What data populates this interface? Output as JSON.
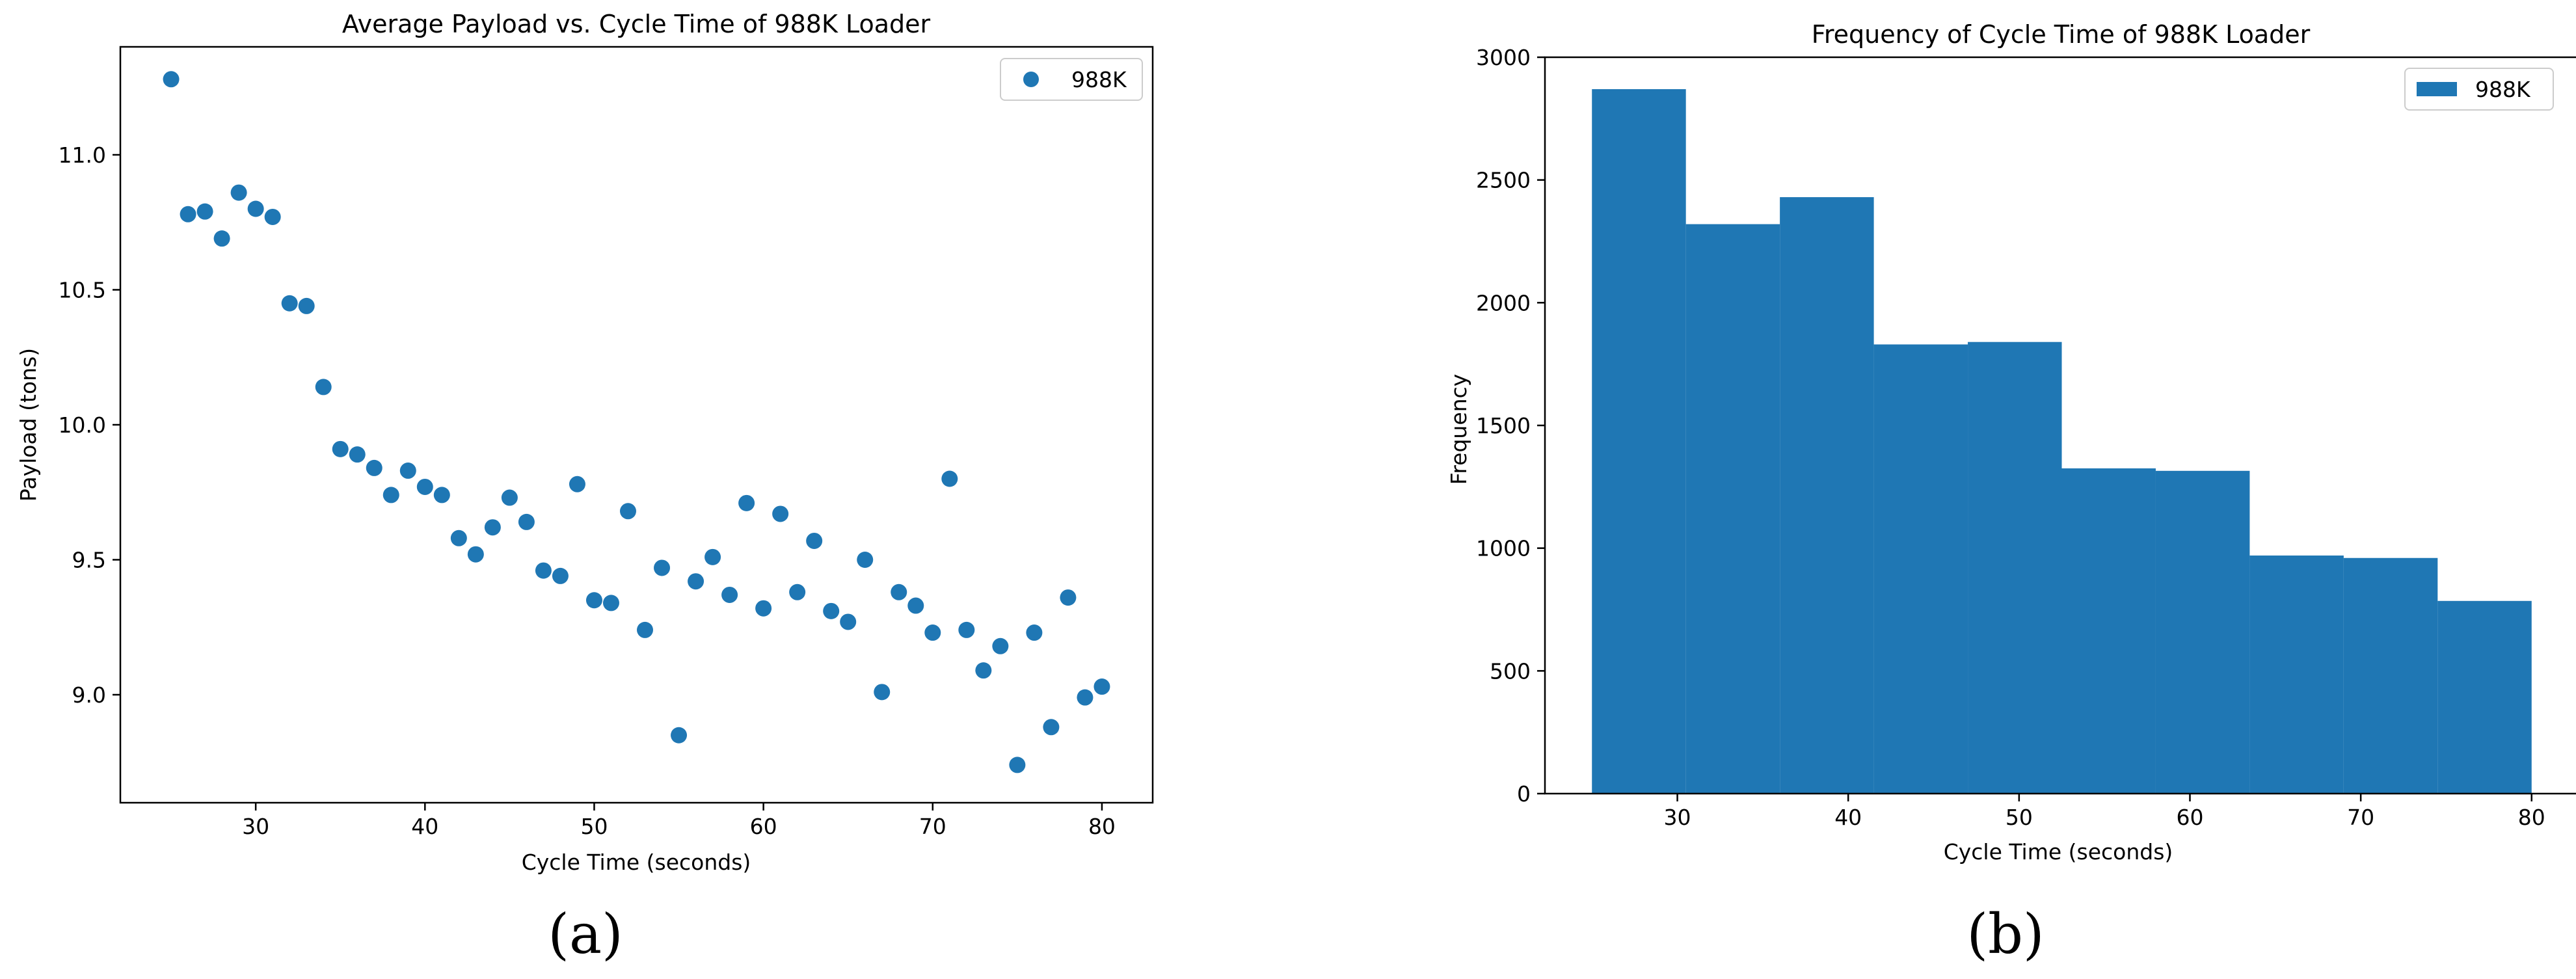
{
  "chart_data": [
    {
      "type": "scatter",
      "title": "Average Payload vs. Cycle Time of 988K Loader",
      "xlabel": "Cycle Time (seconds)",
      "ylabel": "Payload (tons)",
      "xlim": [
        22,
        83
      ],
      "ylim": [
        8.6,
        11.4
      ],
      "xticks": [
        30,
        40,
        50,
        60,
        70,
        80
      ],
      "yticks": [
        9.0,
        9.5,
        10.0,
        10.5,
        11.0
      ],
      "ytick_labels": [
        "9.0",
        "9.5",
        "10.0",
        "10.5",
        "11.0"
      ],
      "grid": false,
      "legend_position": "top-right",
      "color": "#1f77b4",
      "caption": "(a)",
      "series": [
        {
          "name": "988K",
          "x": [
            25,
            26,
            27,
            28,
            29,
            30,
            31,
            32,
            33,
            34,
            35,
            36,
            37,
            38,
            39,
            40,
            41,
            42,
            43,
            44,
            45,
            46,
            47,
            48,
            49,
            50,
            51,
            52,
            53,
            54,
            55,
            56,
            57,
            58,
            59,
            60,
            61,
            62,
            63,
            64,
            65,
            66,
            67,
            68,
            69,
            70,
            71,
            72,
            73,
            74,
            75,
            76,
            77,
            78,
            79,
            80
          ],
          "y": [
            11.28,
            10.78,
            10.79,
            10.69,
            10.86,
            10.8,
            10.77,
            10.45,
            10.44,
            10.14,
            9.91,
            9.89,
            9.84,
            9.74,
            9.83,
            9.77,
            9.74,
            9.58,
            9.52,
            9.62,
            9.73,
            9.64,
            9.46,
            9.44,
            9.78,
            9.35,
            9.34,
            9.68,
            9.24,
            9.47,
            8.85,
            9.42,
            9.51,
            9.37,
            9.71,
            9.32,
            9.67,
            9.38,
            9.57,
            9.31,
            9.27,
            9.5,
            9.01,
            9.38,
            9.33,
            9.23,
            9.8,
            9.24,
            9.09,
            9.18,
            8.74,
            9.23,
            8.88,
            9.36,
            8.99,
            9.03
          ]
        }
      ]
    },
    {
      "type": "bar",
      "title": "Frequency of Cycle Time of 988K Loader",
      "xlabel": "Cycle Time (seconds)",
      "ylabel": "Frequency",
      "xlim": [
        22.25,
        82.75
      ],
      "ylim": [
        0,
        3000
      ],
      "xticks": [
        30,
        40,
        50,
        60,
        70,
        80
      ],
      "yticks": [
        0,
        500,
        1000,
        1500,
        2000,
        2500,
        3000
      ],
      "grid": false,
      "legend_position": "top-right",
      "color": "#1f77b4",
      "caption": "(b)",
      "bin_edges": [
        25,
        30.5,
        36,
        41.5,
        47,
        52.5,
        58,
        63.5,
        69,
        74.5,
        80
      ],
      "series": [
        {
          "name": "988K",
          "values": [
            2870,
            2320,
            2430,
            1830,
            1840,
            1325,
            1315,
            970,
            960,
            785
          ]
        }
      ]
    }
  ]
}
